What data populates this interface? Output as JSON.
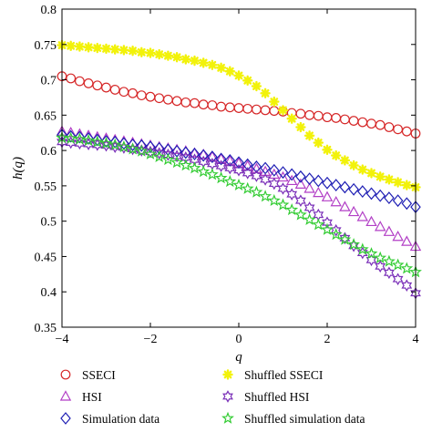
{
  "chart_data": {
    "type": "scatter",
    "title": "",
    "xlabel": "q",
    "ylabel": "h(q)",
    "xlim": [
      -4,
      4
    ],
    "ylim": [
      0.35,
      0.8
    ],
    "xticks": [
      "−4",
      "−2",
      "0",
      "2",
      "4"
    ],
    "yticks": [
      "0.35",
      "0.4",
      "0.45",
      "0.5",
      "0.55",
      "0.6",
      "0.65",
      "0.7",
      "0.75",
      "0.8"
    ],
    "legend_position": "below-plot",
    "x": [
      -4.0,
      -3.8,
      -3.6,
      -3.4,
      -3.2,
      -3.0,
      -2.8,
      -2.6,
      -2.4,
      -2.2,
      -2.0,
      -1.8,
      -1.6,
      -1.4,
      -1.2,
      -1.0,
      -0.8,
      -0.6,
      -0.4,
      -0.2,
      0.0,
      0.2,
      0.4,
      0.6,
      0.8,
      1.0,
      1.2,
      1.4,
      1.6,
      1.8,
      2.0,
      2.2,
      2.4,
      2.6,
      2.8,
      3.0,
      3.2,
      3.4,
      3.6,
      3.8,
      4.0
    ],
    "series": [
      {
        "name": "SSECI",
        "marker": "circle",
        "color": "#d62728",
        "values": [
          0.705,
          0.702,
          0.698,
          0.695,
          0.692,
          0.689,
          0.686,
          0.683,
          0.681,
          0.678,
          0.676,
          0.674,
          0.672,
          0.67,
          0.668,
          0.667,
          0.665,
          0.664,
          0.662,
          0.661,
          0.66,
          0.659,
          0.658,
          0.657,
          0.656,
          0.655,
          0.653,
          0.652,
          0.65,
          0.649,
          0.647,
          0.646,
          0.644,
          0.642,
          0.64,
          0.638,
          0.636,
          0.633,
          0.63,
          0.627,
          0.624
        ]
      },
      {
        "name": "HSI",
        "marker": "triangle",
        "color": "#b23fc6",
        "values": [
          0.627,
          0.625,
          0.623,
          0.621,
          0.619,
          0.617,
          0.615,
          0.613,
          0.611,
          0.609,
          0.607,
          0.605,
          0.603,
          0.601,
          0.599,
          0.596,
          0.594,
          0.591,
          0.588,
          0.585,
          0.582,
          0.578,
          0.574,
          0.57,
          0.566,
          0.562,
          0.557,
          0.552,
          0.546,
          0.54,
          0.534,
          0.527,
          0.52,
          0.513,
          0.506,
          0.499,
          0.492,
          0.485,
          0.478,
          0.471,
          0.464
        ]
      },
      {
        "name": "Simulation data",
        "marker": "diamond",
        "color": "#1f1fb4",
        "values": [
          0.622,
          0.62,
          0.619,
          0.617,
          0.615,
          0.613,
          0.612,
          0.61,
          0.608,
          0.607,
          0.605,
          0.603,
          0.601,
          0.599,
          0.597,
          0.595,
          0.593,
          0.591,
          0.588,
          0.586,
          0.583,
          0.58,
          0.577,
          0.575,
          0.572,
          0.569,
          0.566,
          0.563,
          0.56,
          0.557,
          0.554,
          0.551,
          0.548,
          0.545,
          0.542,
          0.539,
          0.536,
          0.533,
          0.529,
          0.525,
          0.52
        ]
      },
      {
        "name": "Shuffled SSECI",
        "marker": "asterisk",
        "color": "#f2f20a",
        "values": [
          0.749,
          0.748,
          0.747,
          0.746,
          0.745,
          0.744,
          0.743,
          0.742,
          0.741,
          0.739,
          0.738,
          0.736,
          0.734,
          0.732,
          0.729,
          0.727,
          0.724,
          0.721,
          0.717,
          0.712,
          0.706,
          0.699,
          0.691,
          0.681,
          0.669,
          0.657,
          0.645,
          0.633,
          0.621,
          0.611,
          0.601,
          0.593,
          0.586,
          0.579,
          0.573,
          0.568,
          0.563,
          0.559,
          0.555,
          0.551,
          0.548
        ]
      },
      {
        "name": "Shuffled HSI",
        "marker": "hexagram",
        "color": "#7a2fb8",
        "values": [
          0.612,
          0.611,
          0.61,
          0.609,
          0.608,
          0.607,
          0.605,
          0.604,
          0.602,
          0.6,
          0.598,
          0.596,
          0.594,
          0.592,
          0.59,
          0.587,
          0.584,
          0.581,
          0.578,
          0.575,
          0.572,
          0.568,
          0.564,
          0.559,
          0.553,
          0.546,
          0.538,
          0.529,
          0.519,
          0.509,
          0.498,
          0.487,
          0.476,
          0.465,
          0.455,
          0.445,
          0.436,
          0.427,
          0.418,
          0.409,
          0.398
        ]
      },
      {
        "name": "Shuffled simulation data",
        "marker": "pentagram",
        "color": "#33cc33",
        "values": [
          0.618,
          0.617,
          0.616,
          0.614,
          0.612,
          0.61,
          0.608,
          0.605,
          0.602,
          0.599,
          0.595,
          0.591,
          0.587,
          0.583,
          0.579,
          0.575,
          0.57,
          0.566,
          0.561,
          0.556,
          0.551,
          0.546,
          0.541,
          0.535,
          0.529,
          0.523,
          0.516,
          0.509,
          0.502,
          0.495,
          0.488,
          0.481,
          0.474,
          0.467,
          0.46,
          0.454,
          0.448,
          0.443,
          0.438,
          0.433,
          0.428
        ]
      }
    ],
    "legend": [
      {
        "label": "SSECI",
        "marker": "circle",
        "color": "#d62728"
      },
      {
        "label": "Shuffled SSECI",
        "marker": "asterisk",
        "color": "#f2f20a"
      },
      {
        "label": "HSI",
        "marker": "triangle",
        "color": "#b23fc6"
      },
      {
        "label": "Shuffled HSI",
        "marker": "hexagram",
        "color": "#7a2fb8"
      },
      {
        "label": "Simulation data",
        "marker": "diamond",
        "color": "#1f1fb4"
      },
      {
        "label": "Shuffled simulation data",
        "marker": "pentagram",
        "color": "#33cc33"
      }
    ]
  }
}
